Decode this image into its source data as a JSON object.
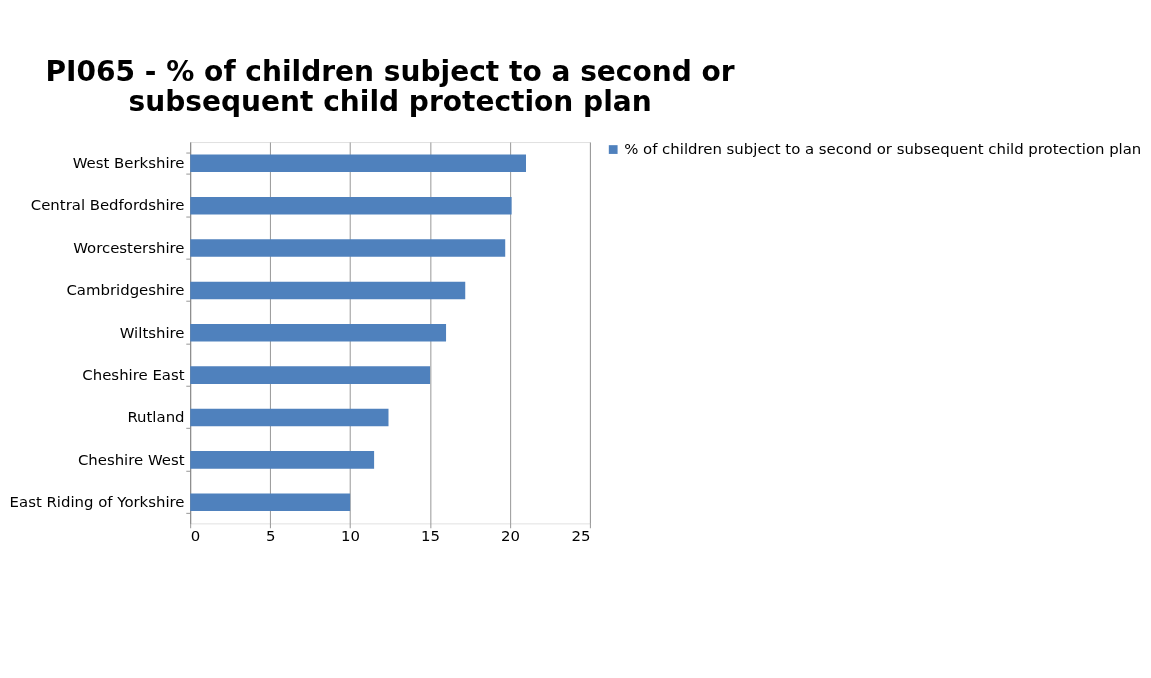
{
  "chart_data": {
    "type": "bar",
    "orientation": "horizontal",
    "title": "PI065 - % of children subject to a second or subsequent child protection plan",
    "categories": [
      "West Berkshire",
      "Central Bedfordshire",
      "Worcestershire",
      "Cambridgeshire",
      "Wiltshire",
      "Cheshire East",
      "Rutland",
      "Cheshire West",
      "East Riding of Yorkshire"
    ],
    "series": [
      {
        "name": "% of children subject to a second or subsequent child protection plan",
        "color": "#4f81bd",
        "values": [
          21.0,
          20.1,
          19.7,
          17.2,
          16.0,
          15.0,
          12.4,
          11.5,
          10.0
        ]
      }
    ],
    "xlim": [
      0,
      25
    ],
    "xticks": [
      0,
      5,
      10,
      15,
      20,
      25
    ],
    "grid": "x",
    "legend": "right"
  }
}
